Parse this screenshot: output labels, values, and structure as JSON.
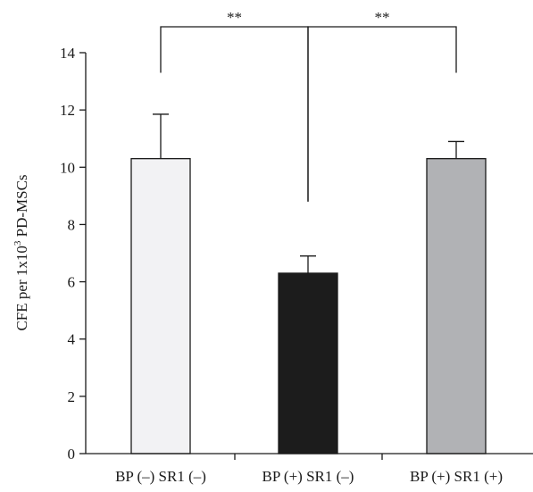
{
  "chart_data": {
    "type": "bar",
    "categories": [
      "BP (–) SR1 (–)",
      "BP (+) SR1 (–)",
      "BP (+) SR1 (+)"
    ],
    "values": [
      10.3,
      6.3,
      10.3
    ],
    "errors": [
      1.55,
      0.6,
      0.6
    ],
    "bar_colors": [
      "#f2f2f4",
      "#1c1c1c",
      "#b1b2b5"
    ],
    "title": "",
    "xlabel": "",
    "ylabel_prefix": "CFE per 1x10",
    "ylabel_sup": "3",
    "ylabel_suffix": " PD-MSCs",
    "ylim": [
      0,
      14
    ],
    "yticks": [
      0,
      2,
      4,
      6,
      8,
      10,
      12,
      14
    ],
    "ytick_labels": [
      "0",
      "2",
      "4",
      "6",
      "8",
      "10",
      "12",
      "14"
    ],
    "grid": false,
    "significance": [
      {
        "from": 0,
        "to": 1,
        "label": "**"
      },
      {
        "from": 1,
        "to": 2,
        "label": "**"
      }
    ]
  }
}
